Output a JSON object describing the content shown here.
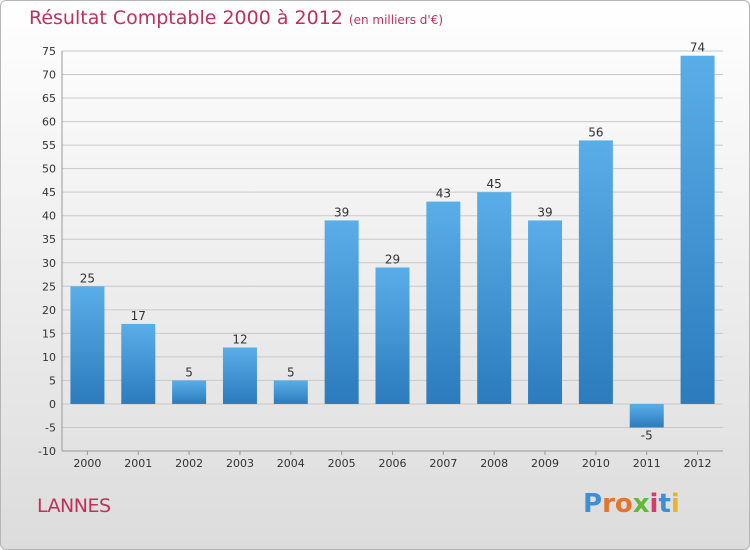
{
  "header": {
    "title": "Résultat Comptable 2000 à 2012",
    "subtitle": "(en milliers d'€)"
  },
  "footer": {
    "place": "LANNES",
    "logo_text": "Proxiti",
    "logo_colors": [
      "#3d8fd6",
      "#e8732a",
      "#e8732a",
      "#62b83a",
      "#d63a6a",
      "#3d8fd6",
      "#e8b42a"
    ]
  },
  "colors": {
    "bar_light": "#5aaee8",
    "bar_dark": "#2b7bbd",
    "grid": "#c9c9c9",
    "title": "#c0305a"
  },
  "chart_data": {
    "type": "bar",
    "categories": [
      "2000",
      "2001",
      "2002",
      "2003",
      "2004",
      "2005",
      "2006",
      "2007",
      "2008",
      "2009",
      "2010",
      "2011",
      "2012"
    ],
    "values": [
      25,
      17,
      5,
      12,
      5,
      39,
      29,
      43,
      45,
      39,
      56,
      -5,
      74
    ],
    "data_labels": [
      "25",
      "17",
      "5",
      "12",
      "5",
      "39",
      "29",
      "43",
      "45",
      "39",
      "56",
      "-5",
      "74"
    ],
    "title": "Résultat Comptable 2000 à 2012",
    "ylim": [
      -10,
      75
    ],
    "y_ticks": [
      75,
      70,
      65,
      60,
      55,
      50,
      45,
      40,
      35,
      30,
      25,
      20,
      15,
      10,
      5,
      0,
      -5,
      -10
    ],
    "grid": true
  }
}
